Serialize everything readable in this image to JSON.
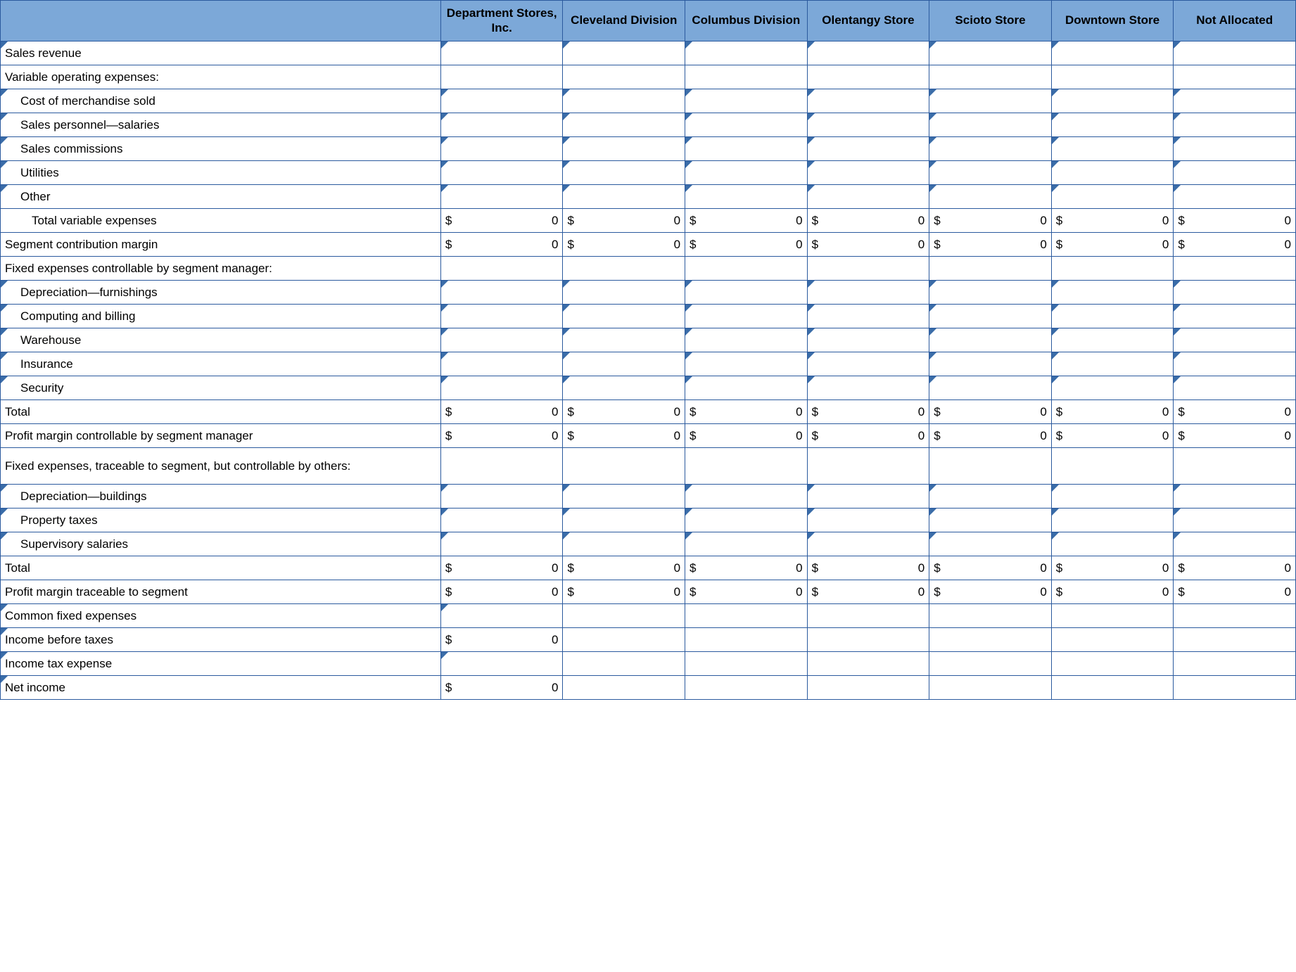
{
  "colors": {
    "header_bg": "#7ca8d8",
    "border": "#2b5a9e",
    "flag": "#3a6ca8"
  },
  "columns": [
    "Department Stores, Inc.",
    "Cleveland Division",
    "Columbus Division",
    "Olentangy Store",
    "Scioto Store",
    "Downtown Store",
    "Not Allocated"
  ],
  "rows": [
    {
      "label": "Sales revenue",
      "indent": 0,
      "labelFlag": true,
      "cells": [
        {
          "flag": true
        },
        {
          "flag": true
        },
        {
          "flag": true
        },
        {
          "flag": true
        },
        {
          "flag": true
        },
        {
          "flag": true
        },
        {
          "flag": true
        }
      ]
    },
    {
      "label": "Variable operating expenses:",
      "indent": 0,
      "cells": [
        {},
        {},
        {},
        {},
        {},
        {},
        {}
      ]
    },
    {
      "label": "Cost of merchandise sold",
      "indent": 1,
      "labelFlag": true,
      "cells": [
        {
          "flag": true
        },
        {
          "flag": true
        },
        {
          "flag": true
        },
        {
          "flag": true
        },
        {
          "flag": true
        },
        {
          "flag": true
        },
        {
          "flag": true
        }
      ]
    },
    {
      "label": "Sales personnel—salaries",
      "indent": 1,
      "labelFlag": true,
      "cells": [
        {
          "flag": true
        },
        {
          "flag": true
        },
        {
          "flag": true
        },
        {
          "flag": true
        },
        {
          "flag": true
        },
        {
          "flag": true
        },
        {
          "flag": true
        }
      ]
    },
    {
      "label": "Sales commissions",
      "indent": 1,
      "labelFlag": true,
      "cells": [
        {
          "flag": true
        },
        {
          "flag": true
        },
        {
          "flag": true
        },
        {
          "flag": true
        },
        {
          "flag": true
        },
        {
          "flag": true
        },
        {
          "flag": true
        }
      ]
    },
    {
      "label": "Utilities",
      "indent": 1,
      "labelFlag": true,
      "cells": [
        {
          "flag": true
        },
        {
          "flag": true
        },
        {
          "flag": true
        },
        {
          "flag": true
        },
        {
          "flag": true
        },
        {
          "flag": true
        },
        {
          "flag": true
        }
      ]
    },
    {
      "label": "Other",
      "indent": 1,
      "labelFlag": true,
      "cells": [
        {
          "flag": true
        },
        {
          "flag": true
        },
        {
          "flag": true
        },
        {
          "flag": true
        },
        {
          "flag": true
        },
        {
          "flag": true
        },
        {
          "flag": true
        }
      ]
    },
    {
      "label": "Total variable expenses",
      "indent": 2,
      "cells": [
        {
          "cur": "$",
          "val": "0"
        },
        {
          "cur": "$",
          "val": "0"
        },
        {
          "cur": "$",
          "val": "0"
        },
        {
          "cur": "$",
          "val": "0"
        },
        {
          "cur": "$",
          "val": "0"
        },
        {
          "cur": "$",
          "val": "0"
        },
        {
          "cur": "$",
          "val": "0"
        }
      ]
    },
    {
      "label": "Segment contribution margin",
      "indent": 0,
      "cells": [
        {
          "cur": "$",
          "val": "0"
        },
        {
          "cur": "$",
          "val": "0"
        },
        {
          "cur": "$",
          "val": "0"
        },
        {
          "cur": "$",
          "val": "0"
        },
        {
          "cur": "$",
          "val": "0"
        },
        {
          "cur": "$",
          "val": "0"
        },
        {
          "cur": "$",
          "val": "0"
        }
      ]
    },
    {
      "label": "Fixed expenses controllable by segment manager:",
      "indent": 0,
      "cells": [
        {},
        {},
        {},
        {},
        {},
        {},
        {}
      ]
    },
    {
      "label": "Depreciation—furnishings",
      "indent": 1,
      "labelFlag": true,
      "cells": [
        {
          "flag": true
        },
        {
          "flag": true
        },
        {
          "flag": true
        },
        {
          "flag": true
        },
        {
          "flag": true
        },
        {
          "flag": true
        },
        {
          "flag": true
        }
      ]
    },
    {
      "label": "Computing and billing",
      "indent": 1,
      "labelFlag": true,
      "cells": [
        {
          "flag": true
        },
        {
          "flag": true
        },
        {
          "flag": true
        },
        {
          "flag": true
        },
        {
          "flag": true
        },
        {
          "flag": true
        },
        {
          "flag": true
        }
      ]
    },
    {
      "label": "Warehouse",
      "indent": 1,
      "labelFlag": true,
      "cells": [
        {
          "flag": true
        },
        {
          "flag": true
        },
        {
          "flag": true
        },
        {
          "flag": true
        },
        {
          "flag": true
        },
        {
          "flag": true
        },
        {
          "flag": true
        }
      ]
    },
    {
      "label": "Insurance",
      "indent": 1,
      "labelFlag": true,
      "cells": [
        {
          "flag": true
        },
        {
          "flag": true
        },
        {
          "flag": true
        },
        {
          "flag": true
        },
        {
          "flag": true
        },
        {
          "flag": true
        },
        {
          "flag": true
        }
      ]
    },
    {
      "label": "Security",
      "indent": 1,
      "labelFlag": true,
      "cells": [
        {
          "flag": true
        },
        {
          "flag": true
        },
        {
          "flag": true
        },
        {
          "flag": true
        },
        {
          "flag": true
        },
        {
          "flag": true
        },
        {
          "flag": true
        }
      ]
    },
    {
      "label": "Total",
      "indent": 0,
      "cells": [
        {
          "cur": "$",
          "val": "0"
        },
        {
          "cur": "$",
          "val": "0"
        },
        {
          "cur": "$",
          "val": "0"
        },
        {
          "cur": "$",
          "val": "0"
        },
        {
          "cur": "$",
          "val": "0"
        },
        {
          "cur": "$",
          "val": "0"
        },
        {
          "cur": "$",
          "val": "0"
        }
      ]
    },
    {
      "label": "Profit margin controllable by segment manager",
      "indent": 0,
      "cells": [
        {
          "cur": "$",
          "val": "0"
        },
        {
          "cur": "$",
          "val": "0"
        },
        {
          "cur": "$",
          "val": "0"
        },
        {
          "cur": "$",
          "val": "0"
        },
        {
          "cur": "$",
          "val": "0"
        },
        {
          "cur": "$",
          "val": "0"
        },
        {
          "cur": "$",
          "val": "0"
        }
      ]
    },
    {
      "label": "Fixed expenses, traceable to segment, but controllable by others:",
      "indent": 0,
      "tall": true,
      "cells": [
        {},
        {},
        {},
        {},
        {},
        {},
        {}
      ]
    },
    {
      "label": "Depreciation—buildings",
      "indent": 1,
      "labelFlag": true,
      "cells": [
        {
          "flag": true
        },
        {
          "flag": true
        },
        {
          "flag": true
        },
        {
          "flag": true
        },
        {
          "flag": true
        },
        {
          "flag": true
        },
        {
          "flag": true
        }
      ]
    },
    {
      "label": "Property taxes",
      "indent": 1,
      "labelFlag": true,
      "cells": [
        {
          "flag": true
        },
        {
          "flag": true
        },
        {
          "flag": true
        },
        {
          "flag": true
        },
        {
          "flag": true
        },
        {
          "flag": true
        },
        {
          "flag": true
        }
      ]
    },
    {
      "label": "Supervisory salaries",
      "indent": 1,
      "labelFlag": true,
      "cells": [
        {
          "flag": true
        },
        {
          "flag": true
        },
        {
          "flag": true
        },
        {
          "flag": true
        },
        {
          "flag": true
        },
        {
          "flag": true
        },
        {
          "flag": true
        }
      ]
    },
    {
      "label": "Total",
      "indent": 0,
      "cells": [
        {
          "cur": "$",
          "val": "0"
        },
        {
          "cur": "$",
          "val": "0"
        },
        {
          "cur": "$",
          "val": "0"
        },
        {
          "cur": "$",
          "val": "0"
        },
        {
          "cur": "$",
          "val": "0"
        },
        {
          "cur": "$",
          "val": "0"
        },
        {
          "cur": "$",
          "val": "0"
        }
      ]
    },
    {
      "label": "Profit margin traceable to segment",
      "indent": 0,
      "cells": [
        {
          "cur": "$",
          "val": "0"
        },
        {
          "cur": "$",
          "val": "0"
        },
        {
          "cur": "$",
          "val": "0"
        },
        {
          "cur": "$",
          "val": "0"
        },
        {
          "cur": "$",
          "val": "0"
        },
        {
          "cur": "$",
          "val": "0"
        },
        {
          "cur": "$",
          "val": "0"
        }
      ]
    },
    {
      "label": "Common fixed expenses",
      "indent": 0,
      "labelFlag": true,
      "cells": [
        {
          "flag": true
        },
        {},
        {},
        {},
        {},
        {},
        {}
      ]
    },
    {
      "label": "Income before taxes",
      "indent": 0,
      "labelFlag": true,
      "cells": [
        {
          "cur": "$",
          "val": "0"
        },
        {},
        {},
        {},
        {},
        {},
        {}
      ]
    },
    {
      "label": "Income tax expense",
      "indent": 0,
      "labelFlag": true,
      "cells": [
        {
          "flag": true
        },
        {},
        {},
        {},
        {},
        {},
        {}
      ]
    },
    {
      "label": "Net income",
      "indent": 0,
      "labelFlag": true,
      "cells": [
        {
          "cur": "$",
          "val": "0"
        },
        {},
        {},
        {},
        {},
        {},
        {}
      ]
    }
  ]
}
